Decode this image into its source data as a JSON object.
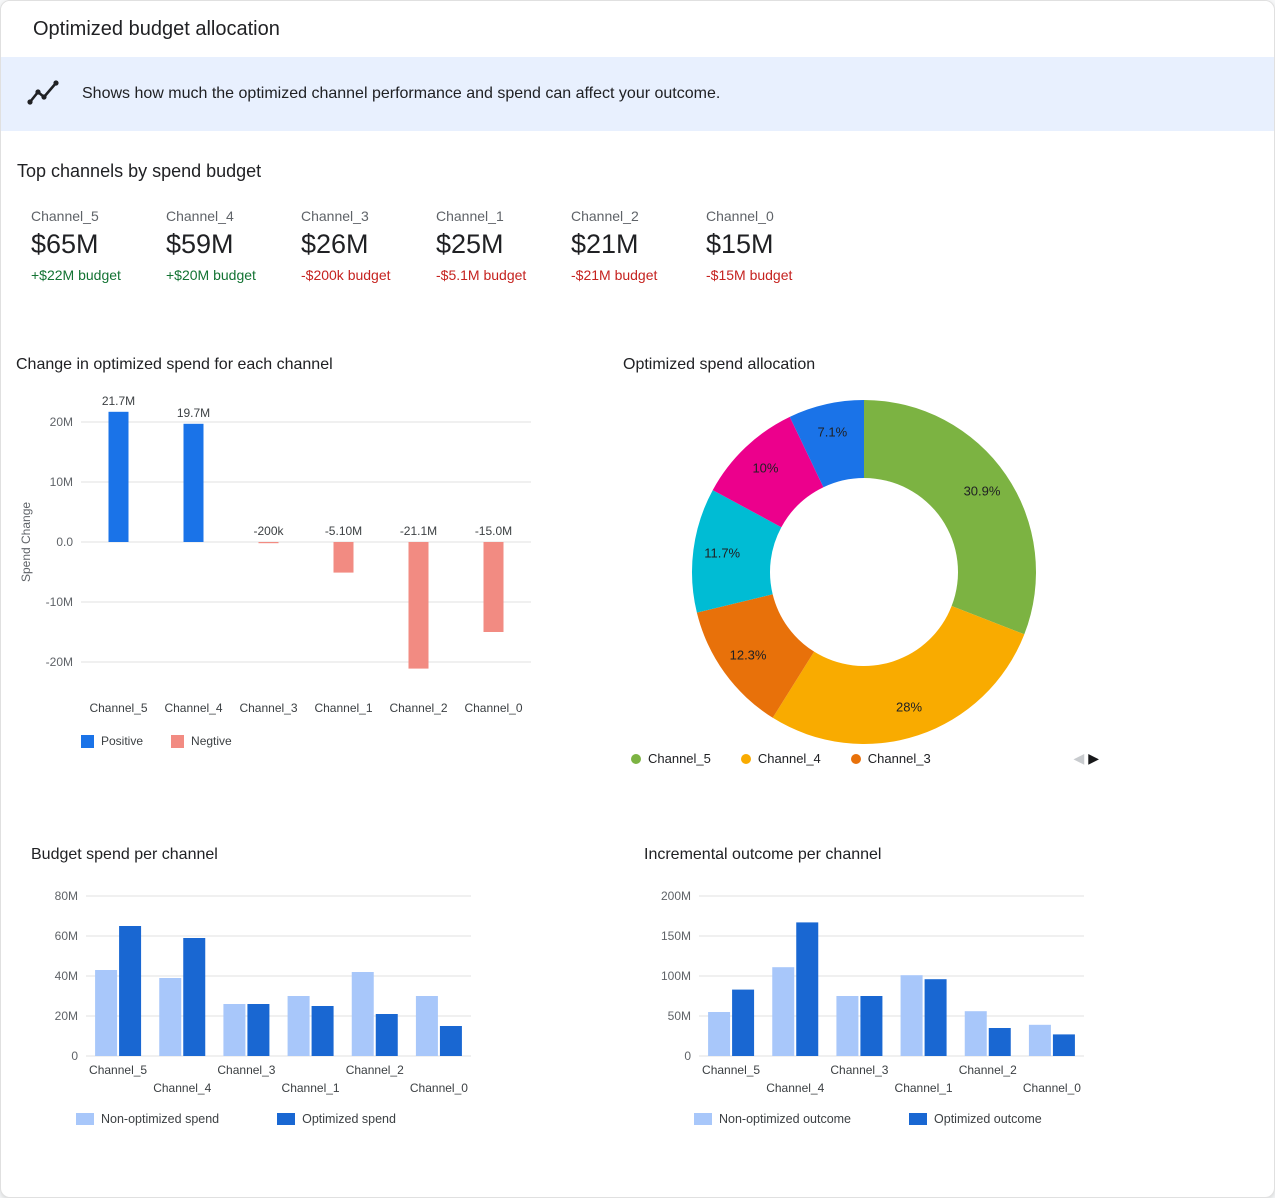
{
  "header": {
    "title": "Optimized budget allocation"
  },
  "banner": {
    "text": "Shows how much the optimized channel performance and spend can affect your outcome.",
    "bg": "#e8f0fe"
  },
  "top_channels": {
    "title": "Top channels by spend budget",
    "cards": [
      {
        "name": "Channel_5",
        "value": "$65M",
        "delta": "+$22M budget",
        "delta_color": "#137333"
      },
      {
        "name": "Channel_4",
        "value": "$59M",
        "delta": "+$20M budget",
        "delta_color": "#137333"
      },
      {
        "name": "Channel_3",
        "value": "$26M",
        "delta": "-$200k budget",
        "delta_color": "#c5221f"
      },
      {
        "name": "Channel_1",
        "value": "$25M",
        "delta": "-$5.1M budget",
        "delta_color": "#c5221f"
      },
      {
        "name": "Channel_2",
        "value": "$21M",
        "delta": "-$21M budget",
        "delta_color": "#c5221f"
      },
      {
        "name": "Channel_0",
        "value": "$15M",
        "delta": "-$15M budget",
        "delta_color": "#c5221f"
      }
    ]
  },
  "chart_data": [
    {
      "id": "spend_change",
      "type": "bar",
      "title": "Change in optimized spend for each channel",
      "ylabel": "Spend Change",
      "categories": [
        "Channel_5",
        "Channel_4",
        "Channel_3",
        "Channel_1",
        "Channel_2",
        "Channel_0"
      ],
      "values_millions": [
        21.7,
        19.7,
        -0.2,
        -5.1,
        -21.1,
        -15.0
      ],
      "value_labels": [
        "21.7M",
        "19.7M",
        "-200k",
        "-5.10M",
        "-21.1M",
        "-15.0M"
      ],
      "yticks": [
        {
          "value": 20,
          "label": "20M"
        },
        {
          "value": 10,
          "label": "10M"
        },
        {
          "value": 0,
          "label": "0.0"
        },
        {
          "value": -10,
          "label": "-10M"
        },
        {
          "value": -20,
          "label": "-20M"
        }
      ],
      "ylim": [
        -22,
        24
      ],
      "positive_color": "#1a73e8",
      "negative_color": "#f28b82",
      "legend": [
        {
          "label": "Positive",
          "color": "#1a73e8"
        },
        {
          "label": "Negtive",
          "color": "#f28b82"
        }
      ]
    },
    {
      "id": "spend_allocation",
      "type": "pie",
      "title": "Optimized spend allocation",
      "slices": [
        {
          "name": "Channel_5",
          "value": 30.9,
          "label": "30.9%",
          "color": "#7cb342"
        },
        {
          "name": "Channel_4",
          "value": 28,
          "label": "28%",
          "color": "#f9ab00"
        },
        {
          "name": "Channel_3",
          "value": 12.3,
          "label": "12.3%",
          "color": "#e8710a"
        },
        {
          "name": "Channel_1",
          "value": 11.7,
          "label": "11.7%",
          "color": "#00bcd4"
        },
        {
          "name": "Channel_2",
          "value": 10,
          "label": "10%",
          "color": "#ec008c"
        },
        {
          "name": "Channel_0",
          "value": 7.1,
          "label": "7.1%",
          "color": "#1a73e8"
        }
      ],
      "legend": [
        {
          "label": "Channel_5",
          "color": "#7cb342"
        },
        {
          "label": "Channel_4",
          "color": "#f9ab00"
        },
        {
          "label": "Channel_3",
          "color": "#e8710a"
        }
      ],
      "pagination": {
        "prev": "◀",
        "next": "▶"
      }
    },
    {
      "id": "budget_spend",
      "type": "bar",
      "title": "Budget spend per channel",
      "categories": [
        "Channel_5",
        "Channel_4",
        "Channel_3",
        "Channel_1",
        "Channel_2",
        "Channel_0"
      ],
      "series": [
        {
          "name": "Non-optimized spend",
          "color": "#a8c7fa",
          "values_millions": [
            43,
            39,
            26,
            30,
            42,
            30
          ]
        },
        {
          "name": "Optimized spend",
          "color": "#1967d2",
          "values_millions": [
            65,
            59,
            26,
            25,
            21,
            15
          ]
        }
      ],
      "yticks": [
        {
          "value": 0,
          "label": "0"
        },
        {
          "value": 20,
          "label": "20M"
        },
        {
          "value": 40,
          "label": "40M"
        },
        {
          "value": 60,
          "label": "60M"
        },
        {
          "value": 80,
          "label": "80M"
        }
      ],
      "ymax": 80,
      "legend": [
        {
          "label": "Non-optimized spend",
          "color": "#a8c7fa"
        },
        {
          "label": "Optimized spend",
          "color": "#1967d2"
        }
      ]
    },
    {
      "id": "incremental_outcome",
      "type": "bar",
      "title": "Incremental outcome per channel",
      "categories": [
        "Channel_5",
        "Channel_4",
        "Channel_3",
        "Channel_1",
        "Channel_2",
        "Channel_0"
      ],
      "series": [
        {
          "name": "Non-optimized outcome",
          "color": "#a8c7fa",
          "values_millions": [
            55,
            111,
            75,
            101,
            56,
            39
          ]
        },
        {
          "name": "Optimized outcome",
          "color": "#1967d2",
          "values_millions": [
            83,
            167,
            75,
            96,
            35,
            27
          ]
        }
      ],
      "yticks": [
        {
          "value": 0,
          "label": "0"
        },
        {
          "value": 50,
          "label": "50M"
        },
        {
          "value": 100,
          "label": "100M"
        },
        {
          "value": 150,
          "label": "150M"
        },
        {
          "value": 200,
          "label": "200M"
        }
      ],
      "ymax": 200,
      "legend": [
        {
          "label": "Non-optimized outcome",
          "color": "#a8c7fa"
        },
        {
          "label": "Optimized outcome",
          "color": "#1967d2"
        }
      ]
    }
  ]
}
